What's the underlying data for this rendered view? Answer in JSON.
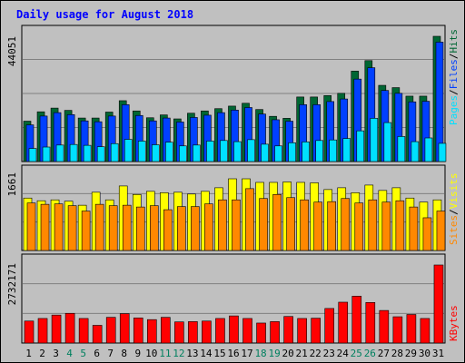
{
  "title": "Daily usage for August 2018",
  "colors": {
    "background": "#c0c0c0",
    "panel": "#c0c0c0",
    "title": "#0000ff",
    "hits": "#006633",
    "files": "#0040ff",
    "pages": "#00e0ff",
    "visits": "#ffff00",
    "sites": "#ff8800",
    "kbytes": "#ff0000",
    "weekend_day": "#00805f",
    "weekday": "#000000"
  },
  "chart_data": [
    {
      "type": "bar",
      "name": "hits-files-pages",
      "y_max_label": "44051",
      "ylim": [
        0,
        44051
      ],
      "legend": [
        "Pages",
        "/",
        "Files",
        "/",
        "Hits"
      ],
      "categories": [
        "1",
        "2",
        "3",
        "4",
        "5",
        "6",
        "7",
        "8",
        "9",
        "10",
        "11",
        "12",
        "13",
        "14",
        "15",
        "16",
        "17",
        "18",
        "19",
        "20",
        "21",
        "22",
        "23",
        "24",
        "25",
        "26",
        "27",
        "28",
        "29",
        "30",
        "31"
      ],
      "series": [
        {
          "name": "Hits",
          "values": [
            14200,
            17500,
            18800,
            18000,
            15300,
            15300,
            17400,
            21400,
            17800,
            15400,
            16400,
            15000,
            17000,
            17800,
            18600,
            19500,
            20500,
            18300,
            15900,
            15200,
            22700,
            22700,
            23200,
            24000,
            31800,
            35500,
            26800,
            26000,
            23000,
            23000,
            44051
          ]
        },
        {
          "name": "Files",
          "values": [
            12900,
            16000,
            17200,
            16500,
            14300,
            14000,
            16000,
            20000,
            16200,
            14300,
            15300,
            13900,
            15500,
            16300,
            17200,
            18100,
            19000,
            16700,
            14700,
            14200,
            20000,
            20000,
            21100,
            22000,
            29000,
            33000,
            25000,
            24000,
            21000,
            21200,
            42000
          ]
        },
        {
          "name": "Pages",
          "values": [
            4600,
            5100,
            5800,
            6000,
            5700,
            5200,
            6300,
            7800,
            7200,
            5900,
            6800,
            5500,
            5800,
            7200,
            7400,
            7000,
            7700,
            6100,
            5500,
            6600,
            6900,
            7400,
            7600,
            8100,
            10800,
            15200,
            13700,
            8800,
            7000,
            8300,
            6400
          ]
        }
      ]
    },
    {
      "type": "bar",
      "name": "visits-sites",
      "y_max_label": "1661",
      "ylim": [
        0,
        1661
      ],
      "legend": [
        "Sites",
        "/",
        "Visits"
      ],
      "categories": [
        "1",
        "2",
        "3",
        "4",
        "5",
        "6",
        "7",
        "8",
        "9",
        "10",
        "11",
        "12",
        "13",
        "14",
        "15",
        "16",
        "17",
        "18",
        "19",
        "20",
        "21",
        "22",
        "23",
        "24",
        "25",
        "26",
        "27",
        "28",
        "29",
        "30",
        "31"
      ],
      "series": [
        {
          "name": "Visits",
          "values": [
            1170,
            1110,
            1130,
            1100,
            1010,
            1300,
            1130,
            1440,
            1250,
            1320,
            1290,
            1300,
            1260,
            1320,
            1400,
            1600,
            1600,
            1520,
            1520,
            1530,
            1520,
            1510,
            1360,
            1400,
            1290,
            1460,
            1340,
            1400,
            1170,
            1080,
            1130
          ]
        },
        {
          "name": "Sites",
          "values": [
            1060,
            1030,
            1040,
            1000,
            880,
            1030,
            1000,
            1010,
            970,
            1000,
            910,
            980,
            980,
            1040,
            1130,
            1130,
            1380,
            1160,
            1250,
            1180,
            1130,
            1080,
            1090,
            1160,
            1060,
            1130,
            1080,
            1110,
            970,
            730,
            880
          ]
        }
      ]
    },
    {
      "type": "bar",
      "name": "kbytes",
      "y_max_label": "2732171",
      "ylim": [
        0,
        2732171
      ],
      "legend": [
        "KBytes"
      ],
      "categories": [
        "1",
        "2",
        "3",
        "4",
        "5",
        "6",
        "7",
        "8",
        "9",
        "10",
        "11",
        "12",
        "13",
        "14",
        "15",
        "16",
        "17",
        "18",
        "19",
        "20",
        "21",
        "22",
        "23",
        "24",
        "25",
        "26",
        "27",
        "28",
        "29",
        "30",
        "31"
      ],
      "series": [
        {
          "name": "KBytes",
          "values": [
            770000,
            860000,
            980000,
            1040000,
            860000,
            620000,
            900000,
            1030000,
            880000,
            820000,
            900000,
            740000,
            750000,
            770000,
            860000,
            950000,
            860000,
            700000,
            750000,
            930000,
            860000,
            870000,
            1210000,
            1430000,
            1640000,
            1420000,
            1140000,
            920000,
            1000000,
            860000,
            2732171
          ]
        }
      ]
    }
  ],
  "x_labels": [
    "1",
    "2",
    "3",
    "4",
    "5",
    "6",
    "7",
    "8",
    "9",
    "10",
    "11",
    "12",
    "13",
    "14",
    "15",
    "16",
    "17",
    "18",
    "19",
    "20",
    "21",
    "22",
    "23",
    "24",
    "25",
    "26",
    "27",
    "28",
    "29",
    "30",
    "31"
  ],
  "weekend_days": [
    "4",
    "5",
    "11",
    "12",
    "18",
    "19",
    "25",
    "26"
  ]
}
